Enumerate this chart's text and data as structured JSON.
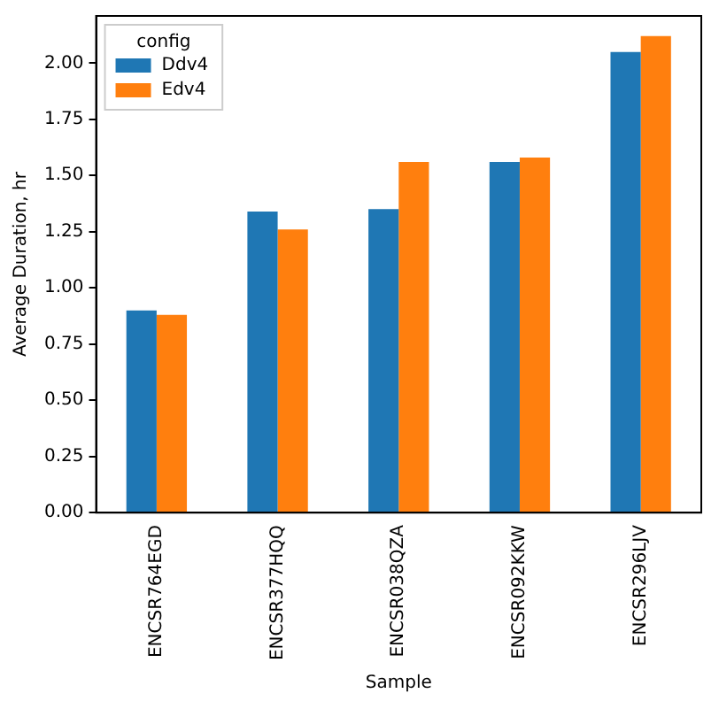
{
  "chart_data": {
    "type": "bar",
    "xlabel": "Sample",
    "ylabel": "Average Duration, hr",
    "legend_title": "config",
    "legend": "top left",
    "grid": false,
    "categories": [
      "ENCSR764EGD",
      "ENCSR377HQQ",
      "ENCSR038QZA",
      "ENCSR092KKW",
      "ENCSR296LJV"
    ],
    "series": [
      {
        "name": "Ddv4",
        "color": "#1f77b4",
        "values": [
          0.9,
          1.34,
          1.35,
          1.56,
          2.05
        ]
      },
      {
        "name": "Edv4",
        "color": "#ff7f0e",
        "values": [
          0.88,
          1.26,
          1.56,
          1.58,
          2.12
        ]
      }
    ],
    "ylim": [
      0,
      2.21
    ],
    "yticks": [
      {
        "value": 0,
        "label": "0.00"
      },
      {
        "value": 0.25,
        "label": "0.25"
      },
      {
        "value": 0.5,
        "label": "0.50"
      },
      {
        "value": 0.75,
        "label": "0.75"
      },
      {
        "value": 1,
        "label": "1.00"
      },
      {
        "value": 1.25,
        "label": "1.25"
      },
      {
        "value": 1.5,
        "label": "1.50"
      },
      {
        "value": 1.75,
        "label": "1.75"
      },
      {
        "value": 2,
        "label": "2.00"
      }
    ]
  }
}
